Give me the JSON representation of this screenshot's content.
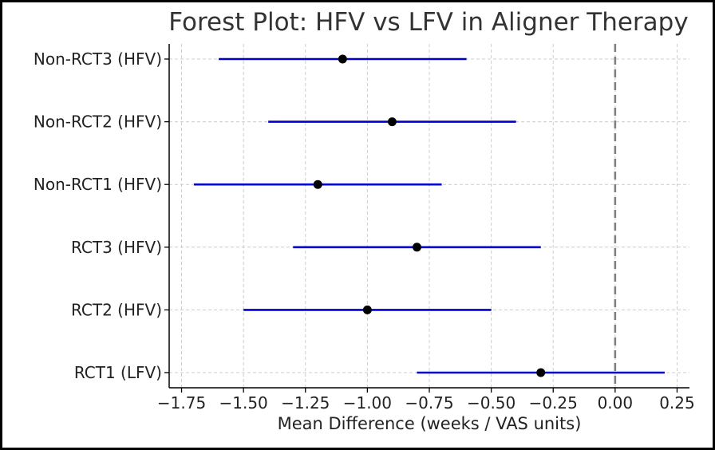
{
  "chart_data": {
    "type": "forest",
    "title": "Forest Plot: HFV vs LFV in Aligner Therapy",
    "xlabel": "Mean Difference (weeks / VAS units)",
    "ylabel": "",
    "xlim": [
      -1.8,
      0.3
    ],
    "xticks": [
      -1.75,
      -1.5,
      -1.25,
      -1.0,
      -0.75,
      -0.5,
      -0.25,
      0.0,
      0.25
    ],
    "xtick_labels": [
      "−1.75",
      "−1.50",
      "−1.25",
      "−1.00",
      "−0.75",
      "−0.50",
      "−0.25",
      "0.00",
      "0.25"
    ],
    "reference_line": 0.0,
    "grid": true,
    "studies": [
      {
        "label": "RCT1 (LFV)",
        "estimate": -0.3,
        "ci_low": -0.8,
        "ci_high": 0.2
      },
      {
        "label": "RCT2 (HFV)",
        "estimate": -1.0,
        "ci_low": -1.5,
        "ci_high": -0.5
      },
      {
        "label": "RCT3 (HFV)",
        "estimate": -0.8,
        "ci_low": -1.3,
        "ci_high": -0.3
      },
      {
        "label": "Non-RCT1 (HFV)",
        "estimate": -1.2,
        "ci_low": -1.7,
        "ci_high": -0.7
      },
      {
        "label": "Non-RCT2 (HFV)",
        "estimate": -0.9,
        "ci_low": -1.4,
        "ci_high": -0.4
      },
      {
        "label": "Non-RCT3 (HFV)",
        "estimate": -1.1,
        "ci_low": -1.6,
        "ci_high": -0.6
      }
    ],
    "colors": {
      "ci_line": "#0000cc",
      "point": "#000000",
      "reference_line": "#808080",
      "grid": "#cccccc"
    }
  }
}
